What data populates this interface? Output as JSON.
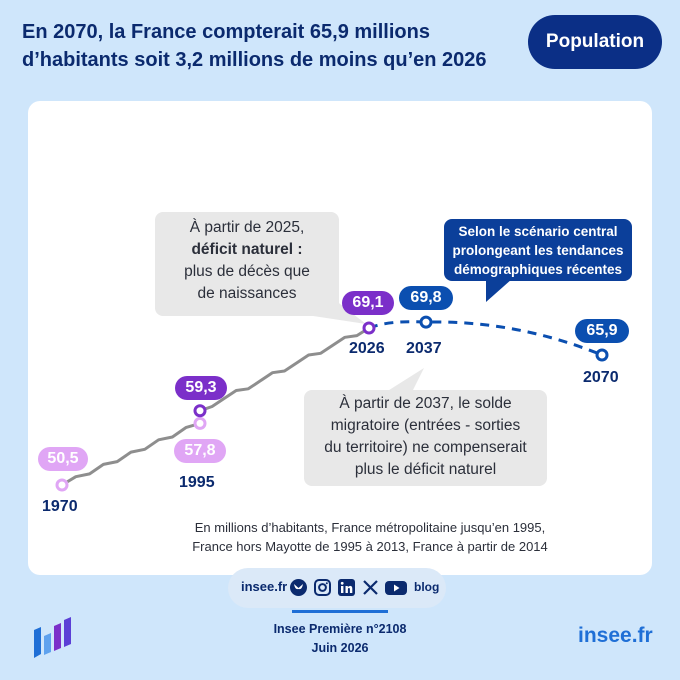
{
  "header": {
    "title_line1": "En 2070, la France compterait 65,9 millions",
    "title_line2": "d’habitants soit 3,2 millions de moins qu’en 2026",
    "tag": "Population"
  },
  "annotations": {
    "deficit": {
      "line1": "À partir de 2025,",
      "line2": "déficit naturel :",
      "line3": "plus de décès que",
      "line4": "de naissances"
    },
    "scenario": {
      "line1": "Selon le scénario central",
      "line2": "prolongeant les tendances",
      "line3": "démographiques récentes"
    },
    "migration": {
      "line1": "À partir de 2037, le solde",
      "line2": "migratoire (entrées - sorties",
      "line3": "du territoire) ne compenserait",
      "line4": "plus le déficit naturel"
    },
    "note_line1": "En millions d’habitants, France métropolitaine jusqu’en 1995,",
    "note_line2": "France hors Mayotte de 1995 à 2013, France à partir de 2014"
  },
  "chart_data": {
    "type": "line",
    "xlabel": "",
    "ylabel": "",
    "series": [
      {
        "values": [
          {
            "x": 1970,
            "y": 50.5,
            "label": "50,5"
          },
          {
            "x": 1995,
            "y": 57.8,
            "label": "57,8"
          }
        ]
      },
      {
        "values": [
          {
            "x": 1995,
            "y": 59.3,
            "label": "59,3"
          },
          {
            "x": 2026,
            "y": 69.1,
            "label": "69,1"
          }
        ]
      },
      {
        "values": [
          {
            "x": 2026,
            "y": 69.1
          },
          {
            "x": 2037,
            "y": 69.8,
            "label": "69,8"
          },
          {
            "x": 2070,
            "y": 65.9,
            "label": "65,9"
          }
        ]
      }
    ],
    "x_labels": [
      "1970",
      "1995",
      "2026",
      "2037",
      "2070"
    ]
  },
  "footer": {
    "site": "insee.fr",
    "publication": "Insee Première n°2108",
    "date": "Juin 2026",
    "brand": "insee.fr",
    "blog": "blog"
  },
  "colors": {
    "navy": "#0b2a6e",
    "light_purple": "#e0a6f5",
    "purple": "#7b2fc9",
    "blue": "#0b4fb0",
    "grey_line": "#8e8e8e"
  }
}
